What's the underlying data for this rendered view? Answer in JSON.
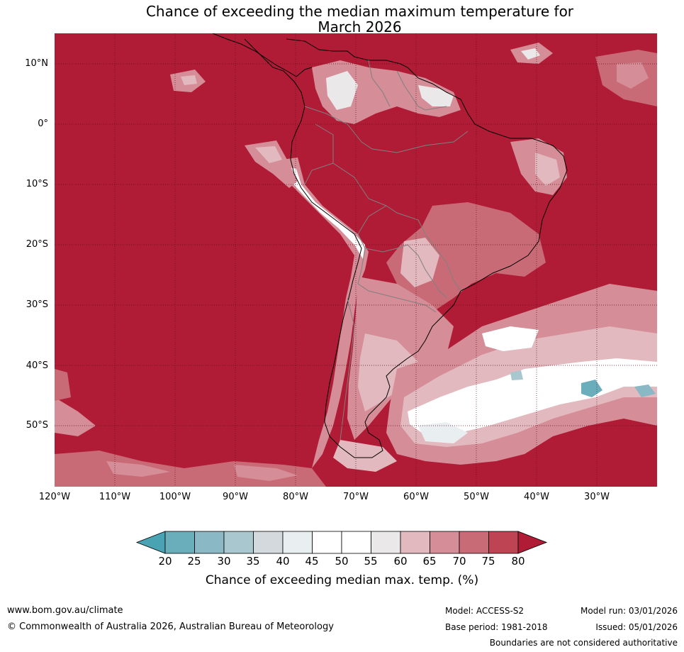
{
  "title": {
    "line1": "Chance of exceeding the median maximum temperature for",
    "line2": "March 2026"
  },
  "map": {
    "lat_labels": [
      "10°N",
      "0°",
      "10°S",
      "20°S",
      "30°S",
      "40°S",
      "50°S"
    ],
    "lon_labels": [
      "120°W",
      "110°W",
      "100°W",
      "90°W",
      "80°W",
      "70°W",
      "60°W",
      "50°W",
      "40°W",
      "30°W"
    ],
    "extent": {
      "lon_min": -120,
      "lon_max": -20,
      "lat_min": -60,
      "lat_max": 15
    },
    "dominant_category": "80+",
    "colors": {
      "ocean_high": "#b01b36",
      "coast": "#000000",
      "borders": "#808080",
      "grid": "#5a0f1c"
    }
  },
  "colorbar": {
    "ticks": [
      "20",
      "25",
      "30",
      "35",
      "40",
      "45",
      "50",
      "55",
      "60",
      "65",
      "70",
      "75",
      "80"
    ],
    "colors": [
      "#4aa3b3",
      "#6aaebc",
      "#8ab8c5",
      "#a9c7ce",
      "#d3d9dc",
      "#e9eef1",
      "#ffffff",
      "#ffffff",
      "#ebe8ea",
      "#e3b9c0",
      "#d58d98",
      "#c96b76",
      "#be4453",
      "#b01b36"
    ],
    "label": "Chance of exceeding median max. temp. (%)"
  },
  "footer": {
    "website": "www.bom.gov.au/climate",
    "copyright": "© Commonwealth of Australia 2026, Australian Bureau of Meteorology",
    "model": "Model: ACCESS-S2",
    "base_period": "Base period: 1981-2018",
    "model_run": "Model run: 03/01/2026",
    "issued": "Issued: 05/01/2026",
    "disclaimer": "Boundaries are not considered authoritative"
  }
}
